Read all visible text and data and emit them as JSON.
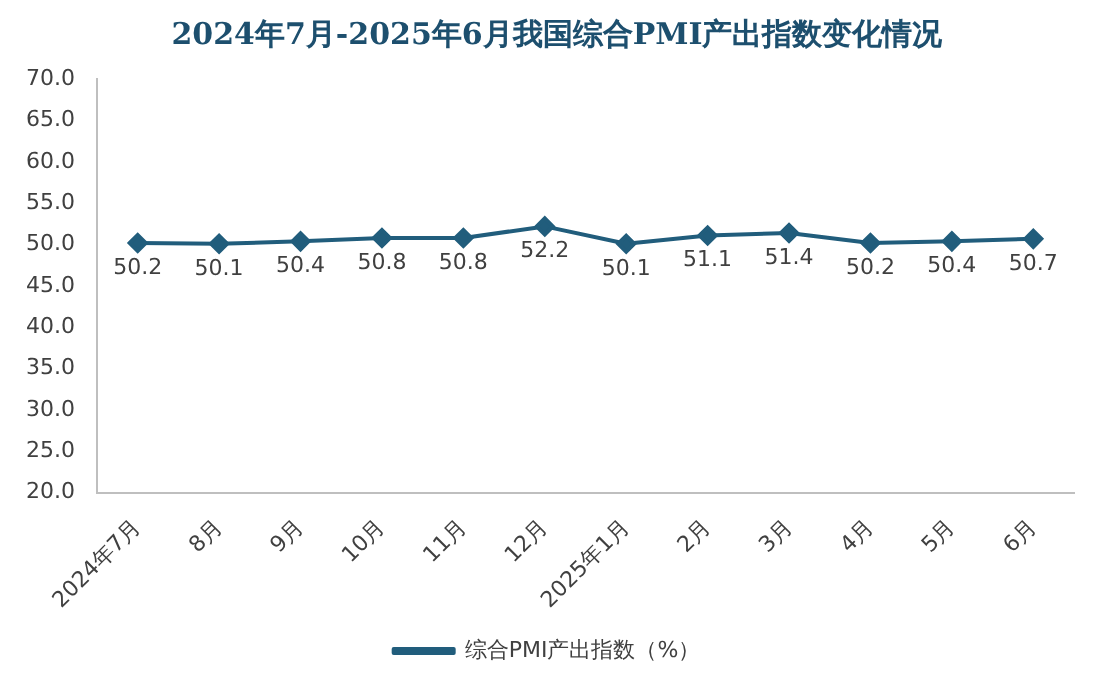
{
  "chart_data": {
    "type": "line",
    "title": "2024年7月-2025年6月我国综合PMI产出指数变化情况",
    "categories": [
      "2024年7月",
      "8月",
      "9月",
      "10月",
      "11月",
      "12月",
      "2025年1月",
      "2月",
      "3月",
      "4月",
      "5月",
      "6月"
    ],
    "series": [
      {
        "name": "综合PMI产出指数（%）",
        "color": "#215d7c",
        "values": [
          50.2,
          50.1,
          50.4,
          50.8,
          50.8,
          52.2,
          50.1,
          51.1,
          51.4,
          50.2,
          50.4,
          50.7
        ]
      }
    ],
    "ylim": [
      20,
      70
    ],
    "yticks": [
      {
        "value": 20,
        "label": "20.0"
      },
      {
        "value": 25,
        "label": "25.0"
      },
      {
        "value": 30,
        "label": "30.0"
      },
      {
        "value": 35,
        "label": "35.0"
      },
      {
        "value": 40,
        "label": "40.0"
      },
      {
        "value": 45,
        "label": "45.0"
      },
      {
        "value": 50,
        "label": "50.0"
      },
      {
        "value": 55,
        "label": "55.0"
      },
      {
        "value": 60,
        "label": "60.0"
      },
      {
        "value": 65,
        "label": "65.0"
      },
      {
        "value": 70,
        "label": "70.0"
      }
    ],
    "grid": false,
    "legend": "bottom",
    "marker": "diamond",
    "line_style": "solid",
    "data_labels": true
  }
}
